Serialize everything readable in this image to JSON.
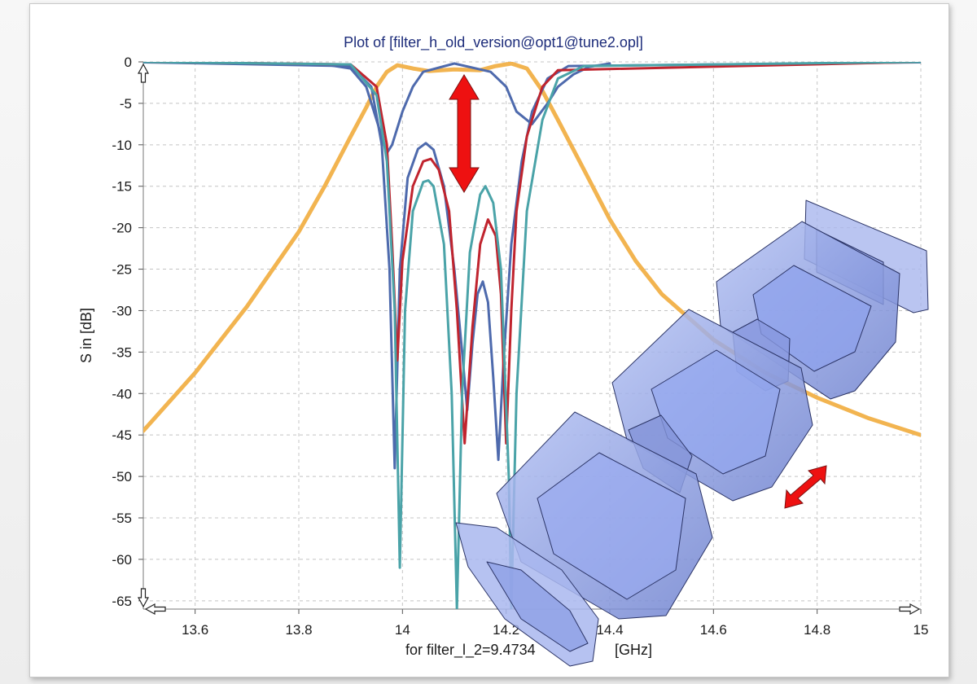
{
  "window": {
    "background": "#f2f2f2"
  },
  "chart_data": {
    "type": "line",
    "title": "Plot of [filter_h_old_version@opt1@tune2.opl]",
    "xlabel": "for filter_l_2=9.4734 [GHz]",
    "xlabel_left": "for filter_l_2=9.4734",
    "xlabel_right": "[GHz]",
    "ylabel": "S in [dB]",
    "xlim": [
      13.5,
      15.0
    ],
    "ylim": [
      -66,
      0
    ],
    "xticks": [
      13.6,
      13.8,
      14,
      14.2,
      14.4,
      14.6,
      14.8,
      15
    ],
    "xtick_labels": [
      "13.6",
      "13.8",
      "14",
      "14.2",
      "14.4",
      "14.6",
      "14.8",
      "15"
    ],
    "yticks": [
      0,
      -5,
      -10,
      -15,
      -20,
      -25,
      -30,
      -35,
      -40,
      -45,
      -50,
      -55,
      -60,
      -65
    ],
    "ytick_labels": [
      "0",
      "-5",
      "-10",
      "-15",
      "-20",
      "-25",
      "-30",
      "-35",
      "-40",
      "-45",
      "-50",
      "-55",
      "-60",
      "-65"
    ],
    "grid": true,
    "series": [
      {
        "color": "#f2b450",
        "kind": "transmission",
        "points": [
          [
            13.5,
            -44.5
          ],
          [
            13.6,
            -37.5
          ],
          [
            13.7,
            -29.5
          ],
          [
            13.8,
            -20.5
          ],
          [
            13.85,
            -15
          ],
          [
            13.9,
            -9
          ],
          [
            13.93,
            -5.5
          ],
          [
            13.95,
            -3
          ],
          [
            13.97,
            -1.2
          ],
          [
            13.99,
            -0.4
          ],
          [
            14.02,
            -0.8
          ],
          [
            14.05,
            -1.1
          ],
          [
            14.1,
            -0.9
          ],
          [
            14.15,
            -1.0
          ],
          [
            14.18,
            -0.5
          ],
          [
            14.21,
            -0.2
          ],
          [
            14.24,
            -0.8
          ],
          [
            14.27,
            -3.5
          ],
          [
            14.3,
            -7
          ],
          [
            14.35,
            -13
          ],
          [
            14.4,
            -19
          ],
          [
            14.45,
            -24
          ],
          [
            14.5,
            -28
          ],
          [
            14.6,
            -33.5
          ],
          [
            14.7,
            -37.5
          ],
          [
            14.8,
            -40.5
          ],
          [
            14.9,
            -43
          ],
          [
            15.0,
            -45
          ]
        ]
      },
      {
        "color": "#4e6aad",
        "kind": "transmission",
        "points": [
          [
            13.85,
            -0.3
          ],
          [
            13.9,
            -0.8
          ],
          [
            13.93,
            -3
          ],
          [
            13.95,
            -7
          ],
          [
            13.97,
            -11
          ],
          [
            13.98,
            -10
          ],
          [
            14.0,
            -6
          ],
          [
            14.02,
            -3
          ],
          [
            14.04,
            -1.2
          ],
          [
            14.1,
            -0.2
          ],
          [
            14.17,
            -1.2
          ],
          [
            14.2,
            -3
          ],
          [
            14.22,
            -6
          ],
          [
            14.25,
            -7.5
          ],
          [
            14.28,
            -5
          ],
          [
            14.3,
            -3
          ],
          [
            14.33,
            -1.5
          ],
          [
            14.36,
            -0.6
          ],
          [
            14.4,
            -0.2
          ]
        ]
      },
      {
        "color": "#4e6aad",
        "kind": "reflection",
        "points": [
          [
            13.5,
            -0.05
          ],
          [
            13.9,
            -0.5
          ],
          [
            13.94,
            -3
          ],
          [
            13.96,
            -10
          ],
          [
            13.975,
            -25
          ],
          [
            13.985,
            -49
          ],
          [
            13.995,
            -25
          ],
          [
            14.01,
            -14
          ],
          [
            14.03,
            -10.5
          ],
          [
            14.045,
            -9.8
          ],
          [
            14.06,
            -10.6
          ],
          [
            14.08,
            -15
          ],
          [
            14.1,
            -25
          ],
          [
            14.115,
            -35
          ],
          [
            14.125,
            -42
          ],
          [
            14.135,
            -34
          ],
          [
            14.145,
            -28
          ],
          [
            14.155,
            -26.5
          ],
          [
            14.165,
            -29
          ],
          [
            14.175,
            -38
          ],
          [
            14.185,
            -48
          ],
          [
            14.195,
            -36
          ],
          [
            14.21,
            -22
          ],
          [
            14.23,
            -12
          ],
          [
            14.25,
            -6
          ],
          [
            14.28,
            -2
          ],
          [
            14.32,
            -0.5
          ],
          [
            15.0,
            -0.05
          ]
        ]
      },
      {
        "color": "#c0242e",
        "kind": "reflection",
        "points": [
          [
            13.5,
            0
          ],
          [
            13.9,
            -0.3
          ],
          [
            13.95,
            -3
          ],
          [
            13.97,
            -10
          ],
          [
            13.98,
            -22
          ],
          [
            13.99,
            -36
          ],
          [
            14.0,
            -24
          ],
          [
            14.02,
            -15
          ],
          [
            14.04,
            -12
          ],
          [
            14.055,
            -11.7
          ],
          [
            14.07,
            -13
          ],
          [
            14.09,
            -18
          ],
          [
            14.105,
            -30
          ],
          [
            14.12,
            -46
          ],
          [
            14.135,
            -32
          ],
          [
            14.15,
            -22
          ],
          [
            14.165,
            -19
          ],
          [
            14.18,
            -21
          ],
          [
            14.19,
            -28
          ],
          [
            14.2,
            -46
          ],
          [
            14.21,
            -30
          ],
          [
            14.22,
            -18
          ],
          [
            14.24,
            -9
          ],
          [
            14.27,
            -3
          ],
          [
            14.3,
            -1
          ],
          [
            15.0,
            0
          ]
        ]
      },
      {
        "color": "#4aa3a8",
        "kind": "reflection",
        "points": [
          [
            13.5,
            0
          ],
          [
            13.9,
            -0.3
          ],
          [
            13.95,
            -4
          ],
          [
            13.97,
            -12
          ],
          [
            13.985,
            -30
          ],
          [
            13.995,
            -61
          ],
          [
            14.005,
            -30
          ],
          [
            14.02,
            -18
          ],
          [
            14.04,
            -14.5
          ],
          [
            14.05,
            -14.3
          ],
          [
            14.06,
            -15
          ],
          [
            14.08,
            -22
          ],
          [
            14.095,
            -40
          ],
          [
            14.105,
            -66
          ],
          [
            14.115,
            -40
          ],
          [
            14.13,
            -23
          ],
          [
            14.15,
            -16
          ],
          [
            14.16,
            -15
          ],
          [
            14.175,
            -17
          ],
          [
            14.19,
            -25
          ],
          [
            14.205,
            -50
          ],
          [
            14.21,
            -66
          ],
          [
            14.22,
            -40
          ],
          [
            14.24,
            -18
          ],
          [
            14.27,
            -7
          ],
          [
            14.3,
            -2
          ],
          [
            14.35,
            -0.5
          ],
          [
            15.0,
            0
          ]
        ]
      }
    ]
  }
}
